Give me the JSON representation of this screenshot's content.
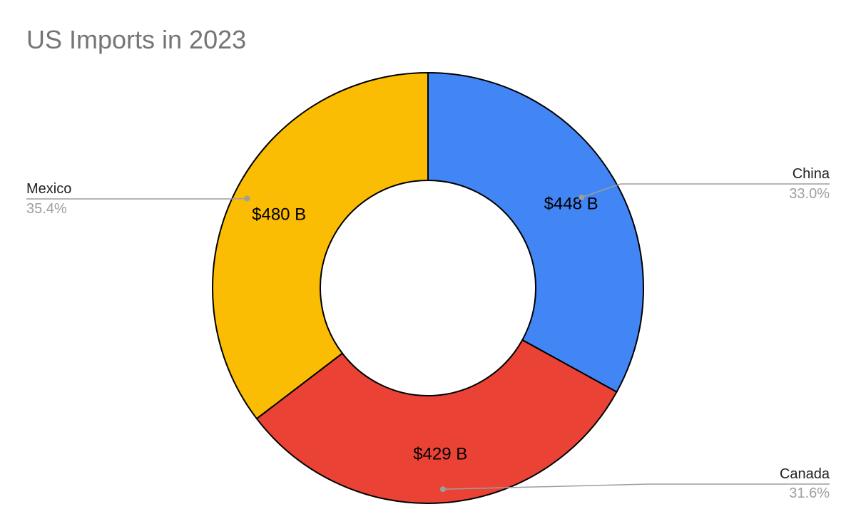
{
  "chart_data": {
    "type": "pie",
    "variant": "donut",
    "title": "US Imports in 2023",
    "slices": [
      {
        "name": "China",
        "value": 448,
        "value_label": "$448 B",
        "percent_label": "33.0%",
        "color": "#4285F4"
      },
      {
        "name": "Canada",
        "value": 429,
        "value_label": "$429 B",
        "percent_label": "31.6%",
        "color": "#EA4335"
      },
      {
        "name": "Mexico",
        "value": 480,
        "value_label": "$480 B",
        "percent_label": "35.4%",
        "color": "#FBBC04"
      }
    ],
    "slice_border_color": "#000000",
    "legend": "callout labels"
  }
}
